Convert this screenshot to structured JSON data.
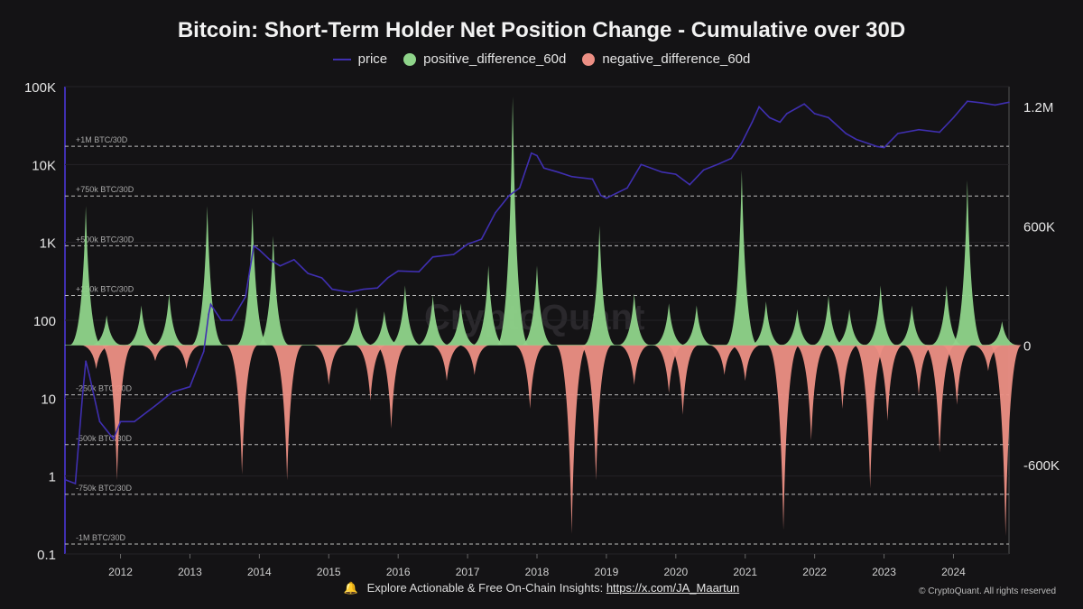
{
  "chart_data": {
    "type": "area",
    "title": "Bitcoin: Short-Term Holder Net Position Change - Cumulative over 30D",
    "legend_position": "top-center",
    "grid": true,
    "x_axis": {
      "range": [
        2011.2,
        2024.8
      ],
      "ticks": [
        "2012",
        "2013",
        "2014",
        "2015",
        "2016",
        "2017",
        "2018",
        "2019",
        "2020",
        "2021",
        "2022",
        "2023",
        "2024"
      ]
    },
    "y_left": {
      "scale": "log",
      "range": [
        0.1,
        100000
      ],
      "ticks": [
        "100K",
        "10K",
        "1K",
        "100",
        "10",
        "1",
        "0.1"
      ]
    },
    "y_right": {
      "scale": "linear",
      "range": [
        -1050000,
        1300000
      ],
      "ticks": [
        "1.2M",
        "600K",
        "0",
        "-600K"
      ]
    },
    "reference_lines": [
      {
        "label": "+1M BTC/30D",
        "value": 1000000
      },
      {
        "label": "+750k BTC/30D",
        "value": 750000
      },
      {
        "label": "+500k BTC/30D",
        "value": 500000
      },
      {
        "label": "+250k BTC/30D",
        "value": 250000
      },
      {
        "label": "-250k BTC/30D",
        "value": -250000
      },
      {
        "label": "-500k BTC/30D",
        "value": -500000
      },
      {
        "label": "-750k BTC/30D",
        "value": -750000
      },
      {
        "label": "-1M BTC/30D",
        "value": -1000000
      }
    ],
    "series": [
      {
        "name": "price",
        "color": "#3f2fb0",
        "axis": "left",
        "x": [
          2011.2,
          2011.35,
          2011.45,
          2011.5,
          2011.55,
          2011.7,
          2011.9,
          2012.0,
          2012.2,
          2012.5,
          2012.75,
          2013.0,
          2013.2,
          2013.27,
          2013.3,
          2013.45,
          2013.6,
          2013.8,
          2013.92,
          2014.0,
          2014.15,
          2014.3,
          2014.5,
          2014.7,
          2014.9,
          2015.05,
          2015.3,
          2015.5,
          2015.7,
          2015.85,
          2016.0,
          2016.3,
          2016.5,
          2016.8,
          2017.0,
          2017.2,
          2017.4,
          2017.6,
          2017.75,
          2017.92,
          2018.0,
          2018.1,
          2018.3,
          2018.5,
          2018.8,
          2018.92,
          2019.0,
          2019.3,
          2019.5,
          2019.8,
          2020.0,
          2020.2,
          2020.4,
          2020.6,
          2020.8,
          2020.95,
          2021.1,
          2021.2,
          2021.35,
          2021.5,
          2021.6,
          2021.85,
          2022.0,
          2022.2,
          2022.45,
          2022.6,
          2022.9,
          2023.0,
          2023.2,
          2023.5,
          2023.8,
          2024.0,
          2024.2,
          2024.4,
          2024.6,
          2024.8
        ],
        "values": [
          0.9,
          0.8,
          10,
          30,
          20,
          5,
          3,
          5,
          5,
          8,
          12,
          14,
          40,
          120,
          160,
          100,
          100,
          200,
          900,
          800,
          600,
          500,
          600,
          400,
          350,
          250,
          230,
          250,
          260,
          350,
          430,
          420,
          650,
          700,
          950,
          1100,
          2400,
          4000,
          5000,
          14000,
          13000,
          9000,
          8000,
          7000,
          6500,
          4000,
          3700,
          5000,
          10000,
          8000,
          7500,
          5500,
          8500,
          10000,
          12000,
          19000,
          35000,
          55000,
          40000,
          35000,
          45000,
          60000,
          45000,
          40000,
          25000,
          21000,
          17000,
          16500,
          25000,
          28000,
          26000,
          40000,
          65000,
          62000,
          58000,
          63000
        ]
      },
      {
        "name": "positive_difference_60d",
        "color": "#8fd48a",
        "axis": "right",
        "x": [
          2011.5,
          2011.8,
          2012.3,
          2012.7,
          2013.25,
          2013.9,
          2014.2,
          2015.4,
          2015.8,
          2016.1,
          2016.5,
          2016.9,
          2017.3,
          2017.65,
          2018.0,
          2018.9,
          2019.4,
          2019.9,
          2020.3,
          2020.95,
          2021.3,
          2021.75,
          2022.2,
          2022.5,
          2022.95,
          2023.4,
          2023.9,
          2024.2,
          2024.7
        ],
        "values": [
          700000,
          150000,
          200000,
          260000,
          700000,
          690000,
          550000,
          190000,
          170000,
          300000,
          250000,
          210000,
          400000,
          1250000,
          400000,
          600000,
          260000,
          210000,
          200000,
          880000,
          220000,
          180000,
          250000,
          180000,
          300000,
          200000,
          300000,
          830000,
          120000
        ]
      },
      {
        "name": "negative_difference_60d",
        "color": "#ec8f84",
        "axis": "right",
        "x": [
          2011.65,
          2011.95,
          2012.5,
          2012.95,
          2013.75,
          2014.4,
          2015.0,
          2015.6,
          2015.9,
          2016.7,
          2017.1,
          2017.9,
          2018.5,
          2018.85,
          2019.4,
          2019.9,
          2020.1,
          2020.7,
          2021.0,
          2021.55,
          2021.95,
          2022.4,
          2022.8,
          2023.05,
          2023.5,
          2023.8,
          2024.05,
          2024.5,
          2024.75
        ],
        "values": [
          -120000,
          -680000,
          -80000,
          -120000,
          -650000,
          -680000,
          -200000,
          -280000,
          -420000,
          -180000,
          -150000,
          -320000,
          -950000,
          -680000,
          -200000,
          -240000,
          -350000,
          -150000,
          -180000,
          -930000,
          -480000,
          -320000,
          -720000,
          -380000,
          -250000,
          -540000,
          -300000,
          -130000,
          -960000
        ]
      }
    ],
    "axis_labels": {
      "ref_suffix": "BTC/30D"
    }
  },
  "footer": {
    "prefix": "Explore Actionable & Free On-Chain Insights:",
    "link": "https://x.com/JA_Maartun",
    "copyright": "© CryptoQuant. All rights reserved"
  },
  "watermark": "CryptoQuant"
}
